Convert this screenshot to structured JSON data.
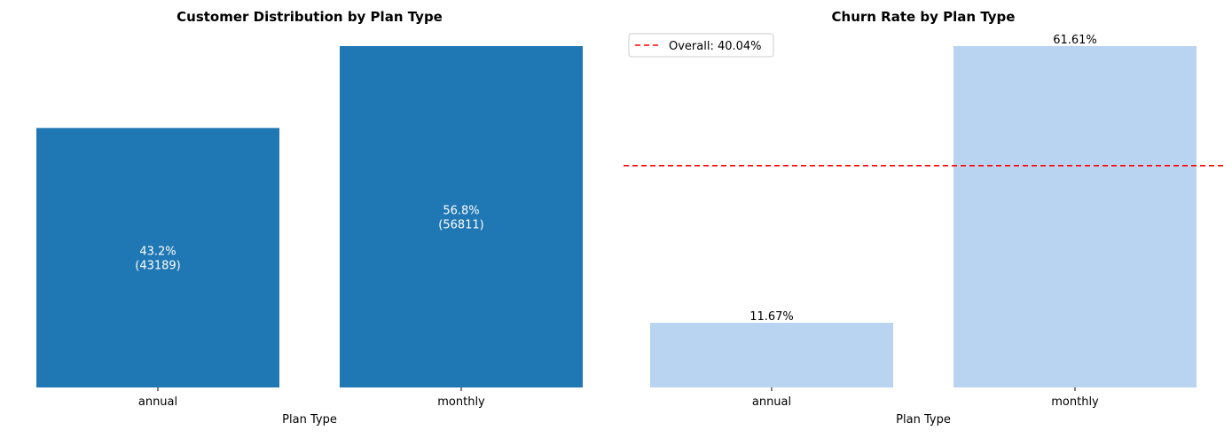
{
  "chart_data": [
    {
      "type": "bar",
      "title": "Customer Distribution by Plan Type",
      "xlabel": "Plan Type",
      "ylabel": "",
      "categories": [
        "annual",
        "monthly"
      ],
      "values": [
        43189,
        56811
      ],
      "percent_labels": [
        "43.2%",
        "56.8%"
      ],
      "count_labels": [
        "(43189)",
        "(56811)"
      ],
      "ylim": [
        0,
        56811
      ],
      "grid": false,
      "bar_color": "#1f77b4",
      "label_color": "#ffffff"
    },
    {
      "type": "bar",
      "title": "Churn Rate by Plan Type",
      "xlabel": "Plan Type",
      "ylabel": "",
      "categories": [
        "annual",
        "monthly"
      ],
      "values": [
        11.67,
        61.61
      ],
      "value_labels": [
        "11.67%",
        "61.61%"
      ],
      "ylim": [
        0,
        61.61
      ],
      "grid": false,
      "bar_color": "#b8d4f1",
      "reference_line": {
        "value": 40.04,
        "label": "Overall: 40.04%",
        "color": "#ff0000",
        "style": "dashed"
      },
      "legend": {
        "entries": [
          "Overall: 40.04%"
        ],
        "placement": "top-left"
      }
    }
  ]
}
